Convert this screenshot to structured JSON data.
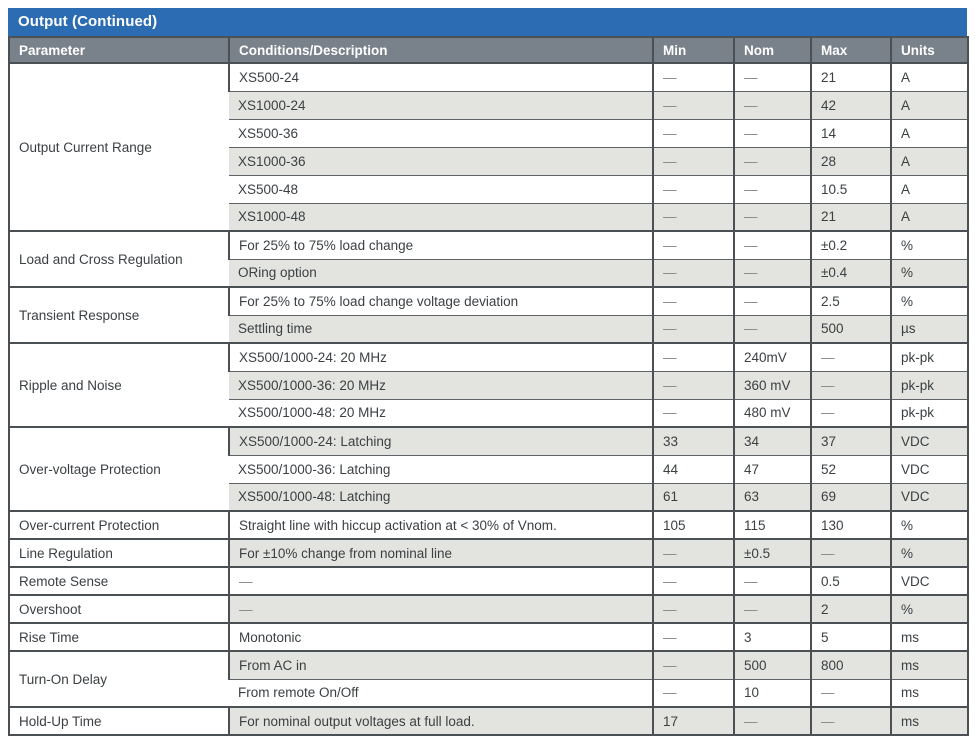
{
  "title": "Output (Continued)",
  "colors": {
    "title_bar_bg": "#2b6cb3",
    "header_bg": "#79818a",
    "alt_row_bg": "#e3e4e0",
    "border": "#4b5054",
    "text": "#3b4043",
    "dash": "#85898c"
  },
  "table": {
    "columns": [
      "Parameter",
      "Conditions/Description",
      "Min",
      "Nom",
      "Max",
      "Units"
    ],
    "groups": [
      {
        "parameter": "Output Current Range",
        "rows": [
          [
            "XS500-24",
            "—",
            "—",
            "21",
            "A"
          ],
          [
            "XS1000-24",
            "—",
            "—",
            "42",
            "A"
          ],
          [
            "XS500-36",
            "—",
            "—",
            "14",
            "A"
          ],
          [
            "XS1000-36",
            "—",
            "—",
            "28",
            "A"
          ],
          [
            "XS500-48",
            "—",
            "—",
            "10.5",
            "A"
          ],
          [
            "XS1000-48",
            "—",
            "—",
            "21",
            "A"
          ]
        ]
      },
      {
        "parameter": "Load and Cross Regulation",
        "rows": [
          [
            "For 25% to 75% load change",
            "—",
            "—",
            "±0.2",
            "%"
          ],
          [
            "ORing option",
            "—",
            "—",
            "±0.4",
            "%"
          ]
        ]
      },
      {
        "parameter": "Transient Response",
        "rows": [
          [
            "For 25% to 75% load change voltage deviation",
            "—",
            "—",
            "2.5",
            "%"
          ],
          [
            "Settling time",
            "—",
            "—",
            "500",
            "µs"
          ]
        ]
      },
      {
        "parameter": "Ripple and Noise",
        "rows": [
          [
            "XS500/1000-24: 20 MHz",
            "—",
            "240mV",
            "—",
            "pk-pk"
          ],
          [
            "XS500/1000-36: 20 MHz",
            "—",
            "360 mV",
            "—",
            "pk-pk"
          ],
          [
            "XS500/1000-48: 20 MHz",
            "—",
            "480 mV",
            "—",
            "pk-pk"
          ]
        ]
      },
      {
        "parameter": "Over-voltage Protection",
        "rows": [
          [
            "XS500/1000-24: Latching",
            "33",
            "34",
            "37",
            "VDC"
          ],
          [
            "XS500/1000-36: Latching",
            "44",
            "47",
            "52",
            "VDC"
          ],
          [
            "XS500/1000-48: Latching",
            "61",
            "63",
            "69",
            "VDC"
          ]
        ]
      },
      {
        "parameter": "Over-current Protection",
        "rows": [
          [
            "Straight line with hiccup activation at < 30% of Vnom.",
            "105",
            "115",
            "130",
            "%"
          ]
        ]
      },
      {
        "parameter": "Line Regulation",
        "rows": [
          [
            "For ±10% change from nominal line",
            "—",
            "±0.5",
            "—",
            "%"
          ]
        ]
      },
      {
        "parameter": "Remote Sense",
        "rows": [
          [
            "—",
            "—",
            "—",
            "0.5",
            "VDC"
          ]
        ]
      },
      {
        "parameter": "Overshoot",
        "rows": [
          [
            "—",
            "—",
            "—",
            "2",
            "%"
          ]
        ]
      },
      {
        "parameter": "Rise Time",
        "rows": [
          [
            "Monotonic",
            "—",
            "3",
            "5",
            "ms"
          ]
        ]
      },
      {
        "parameter": "Turn-On Delay",
        "rows": [
          [
            "From AC in",
            "—",
            "500",
            "800",
            "ms"
          ],
          [
            "From remote On/Off",
            "—",
            "10",
            "—",
            "ms"
          ]
        ]
      },
      {
        "parameter": "Hold-Up Time",
        "rows": [
          [
            "For nominal output voltages at full load.",
            "17",
            "—",
            "—",
            "ms"
          ]
        ]
      }
    ]
  }
}
